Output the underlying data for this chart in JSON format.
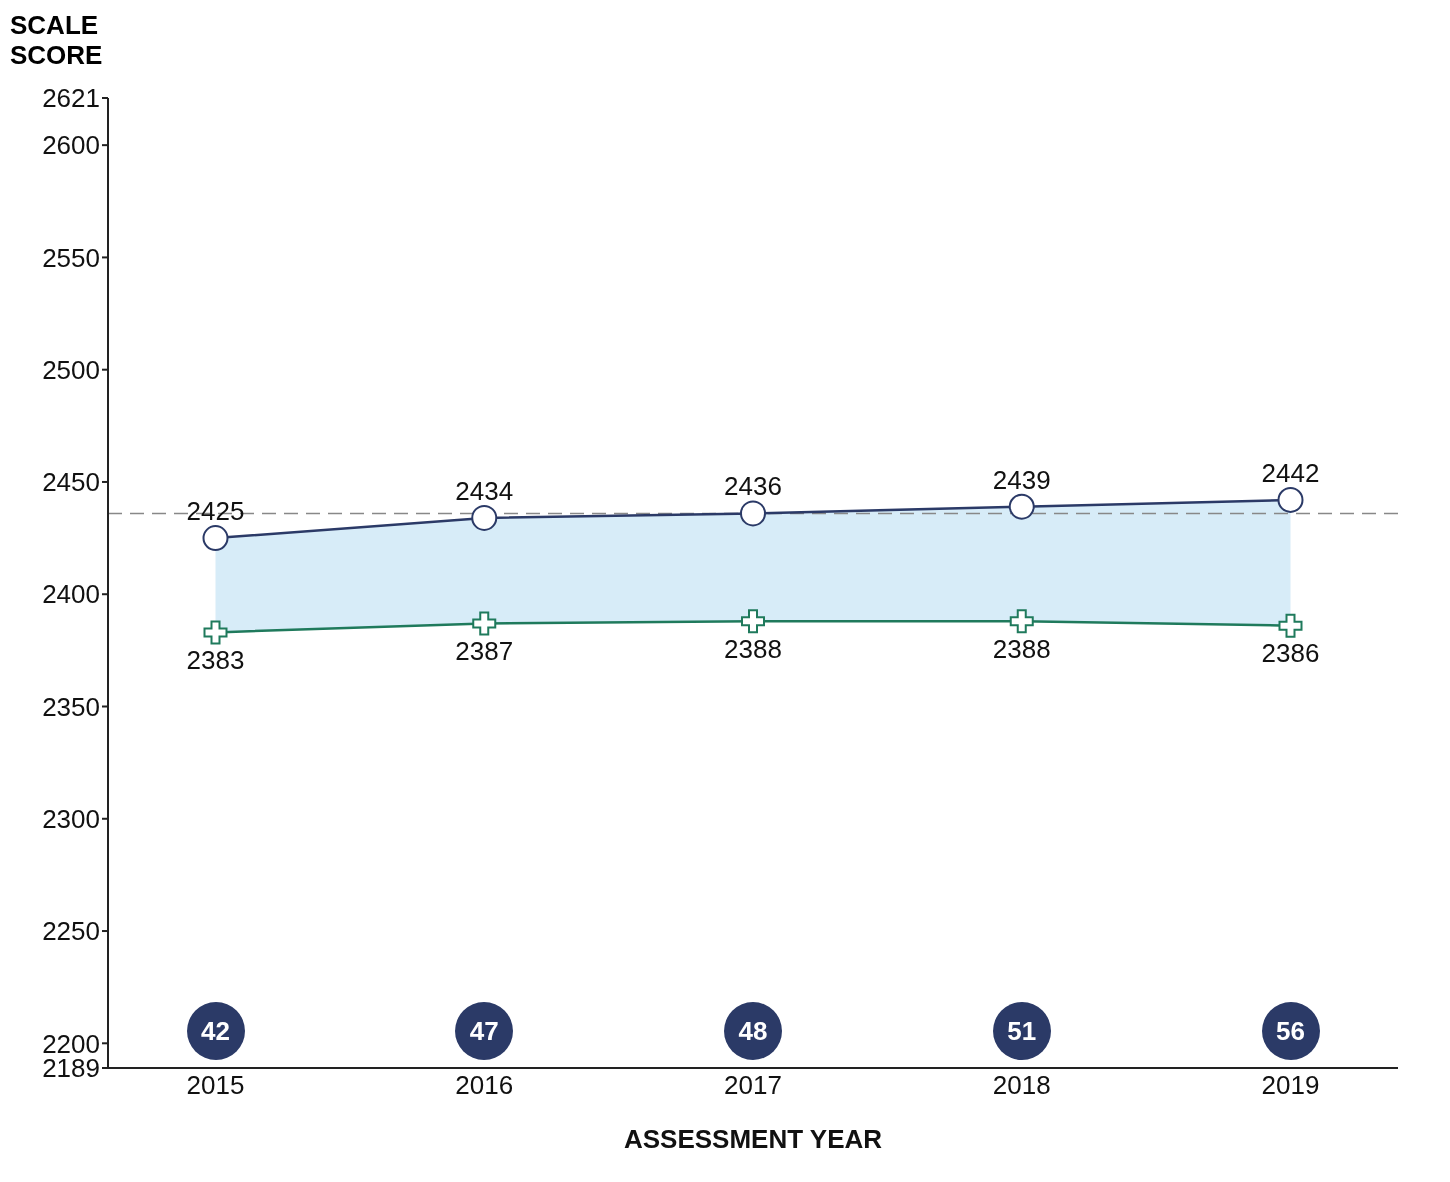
{
  "chart_data": {
    "type": "line",
    "ylabel": "SCALE SCORE",
    "xlabel": "ASSESSMENT YEAR",
    "categories": [
      "2015",
      "2016",
      "2017",
      "2018",
      "2019"
    ],
    "series": [
      {
        "color": "#2b3a67",
        "marker": "circle",
        "values": [
          2425,
          2434,
          2436,
          2439,
          2442
        ],
        "lower": [
          2383,
          2387,
          2388,
          2388,
          2386
        ],
        "upper": [
          2425,
          2434,
          2436,
          2439,
          2442
        ]
      },
      {
        "color": "#1f7a5c",
        "marker": "cross",
        "values": [
          2383,
          2387,
          2388,
          2388,
          2386
        ]
      }
    ],
    "ylim": [
      2189,
      2621
    ],
    "yticks": [
      2189,
      2200,
      2250,
      2300,
      2350,
      2400,
      2450,
      2500,
      2550,
      2600,
      2621
    ],
    "ref_lines": [
      {
        "axis": "y",
        "value": 2436,
        "color": "#888888",
        "line_style": "dashed"
      }
    ],
    "annotations": [
      "42",
      "47",
      "48",
      "51",
      "56"
    ],
    "data_labels": true,
    "grid": false,
    "legend": false
  }
}
